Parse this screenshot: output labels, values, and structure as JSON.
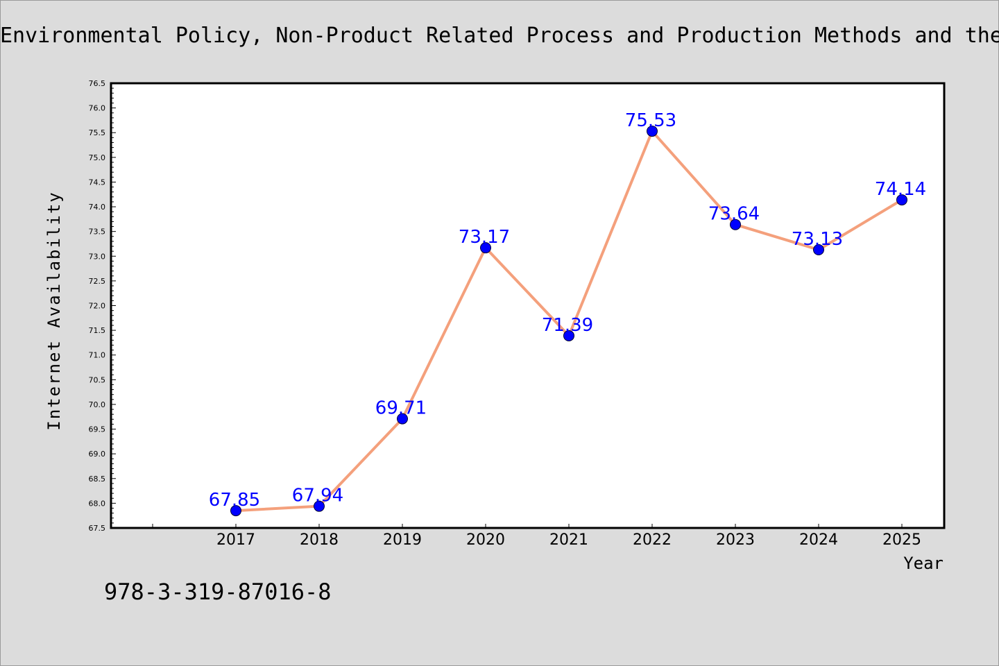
{
  "chart_data": {
    "type": "line",
    "title": "Environmental Policy, Non-Product Related Process and Production Methods and the",
    "xlabel": "Year",
    "ylabel": "Internet Availability",
    "categories": [
      "2017",
      "2018",
      "2019",
      "2020",
      "2021",
      "2022",
      "2023",
      "2024",
      "2025"
    ],
    "values": [
      67.85,
      67.94,
      69.71,
      73.17,
      71.39,
      75.53,
      73.64,
      73.13,
      74.14
    ],
    "data_labels": [
      "67.85",
      "67.94",
      "69.71",
      "73.17",
      "71.39",
      "75.53",
      "73.64",
      "73.13",
      "74.14"
    ],
    "ylim": [
      67.5,
      76.5
    ],
    "yticks": [
      "67.5",
      "68.0",
      "68.5",
      "69.0",
      "69.5",
      "70.0",
      "70.5",
      "71.0",
      "71.5",
      "72.0",
      "72.5",
      "73.0",
      "73.5",
      "74.0",
      "74.5",
      "75.0",
      "75.5",
      "76.0",
      "76.5"
    ],
    "grid": false,
    "legend": "none",
    "line_color": "#f4a07c",
    "marker_color": "#0000ff",
    "label_color": "#0000ff"
  },
  "footer": {
    "isbn": "978-3-319-87016-8"
  }
}
